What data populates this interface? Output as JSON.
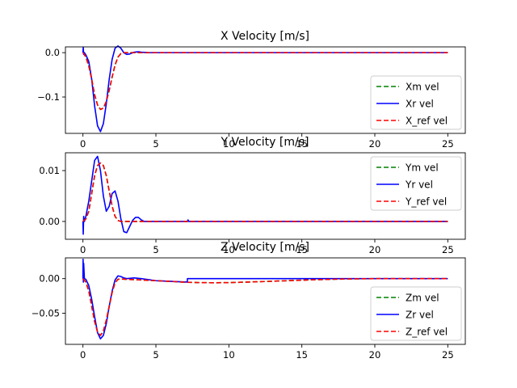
{
  "figure": {
    "background": "#ffffff"
  },
  "chart_data": [
    {
      "type": "line",
      "title": "X Velocity [m/s]",
      "xlabel": "",
      "ylabel": "",
      "xlim": [
        -1.2,
        26.2
      ],
      "ylim": [
        -0.182,
        0.013
      ],
      "xticks": [
        0,
        5,
        10,
        15,
        20,
        25
      ],
      "xtick_labels": [
        "0",
        "5",
        "10",
        "15",
        "20",
        "25"
      ],
      "yticks": [
        0.0,
        -0.1
      ],
      "ytick_labels": [
        "0.0",
        "−0.1"
      ],
      "grid": false,
      "legend_position": "lower-right",
      "series": [
        {
          "name": "Xm vel",
          "color": "#008000",
          "style": "dashed",
          "x": [
            0,
            0.05,
            0.1,
            0.2,
            0.4,
            0.6,
            0.8,
            1.0,
            1.2,
            1.4,
            1.6,
            1.8,
            2.0,
            2.2,
            2.4,
            2.6,
            2.8,
            3.0,
            3.5,
            4.0,
            4.5,
            5,
            10,
            15,
            20,
            25
          ],
          "y": [
            0.0,
            0.0,
            -0.005,
            -0.01,
            -0.03,
            -0.06,
            -0.095,
            -0.118,
            -0.128,
            -0.125,
            -0.11,
            -0.085,
            -0.055,
            -0.028,
            -0.01,
            -0.002,
            0.0,
            0.0,
            0.0,
            0.0,
            0.0,
            0.0,
            0.0,
            0.0,
            0.0,
            0.0
          ]
        },
        {
          "name": "Xr vel",
          "color": "#0000ff",
          "style": "solid",
          "x": [
            0,
            0.02,
            0.05,
            0.1,
            0.2,
            0.4,
            0.6,
            0.8,
            1.0,
            1.2,
            1.4,
            1.6,
            1.8,
            2.0,
            2.2,
            2.4,
            2.6,
            2.8,
            3.0,
            3.2,
            3.5,
            3.8,
            4.0,
            4.5,
            5,
            10,
            15,
            20,
            25
          ],
          "y": [
            0.0,
            0.012,
            -0.004,
            0.0,
            -0.005,
            -0.02,
            -0.06,
            -0.12,
            -0.165,
            -0.178,
            -0.16,
            -0.115,
            -0.06,
            -0.015,
            0.01,
            0.015,
            0.01,
            0.0,
            -0.004,
            -0.003,
            0.001,
            0.002,
            0.001,
            0.0,
            0.0,
            0.0,
            0.0,
            0.0,
            0.0
          ]
        },
        {
          "name": "X_ref vel",
          "color": "#ff0000",
          "style": "dashed",
          "x": [
            0,
            0.1,
            0.2,
            0.4,
            0.6,
            0.8,
            1.0,
            1.2,
            1.4,
            1.6,
            1.8,
            2.0,
            2.2,
            2.4,
            2.6,
            2.8,
            3.0,
            3.5,
            4.0,
            5,
            10,
            15,
            20,
            25
          ],
          "y": [
            0.0,
            -0.004,
            -0.01,
            -0.03,
            -0.06,
            -0.095,
            -0.118,
            -0.128,
            -0.125,
            -0.11,
            -0.085,
            -0.055,
            -0.028,
            -0.01,
            -0.002,
            0.0,
            0.0,
            0.0,
            0.0,
            0.0,
            0.0,
            0.0,
            0.0,
            0.0
          ]
        }
      ]
    },
    {
      "type": "line",
      "title": "Y Velocity [m/s]",
      "xlabel": "",
      "ylabel": "",
      "xlim": [
        -1.2,
        26.2
      ],
      "ylim": [
        -0.0035,
        0.0135
      ],
      "xticks": [
        0,
        5,
        10,
        15,
        20,
        25
      ],
      "xtick_labels": [
        "0",
        "5",
        "10",
        "15",
        "20",
        "25"
      ],
      "yticks": [
        0.01,
        0.0
      ],
      "ytick_labels": [
        "0.01",
        "0.00"
      ],
      "grid": false,
      "legend_position": "upper-right",
      "series": [
        {
          "name": "Ym vel",
          "color": "#008000",
          "style": "dashed",
          "x": [
            0,
            0.2,
            0.4,
            0.6,
            0.8,
            1.0,
            1.2,
            1.4,
            1.6,
            1.8,
            2.0,
            2.2,
            2.4,
            2.6,
            3.0,
            4.0,
            5,
            10,
            15,
            20,
            25
          ],
          "y": [
            0.0,
            0.0005,
            0.002,
            0.0055,
            0.009,
            0.011,
            0.0115,
            0.011,
            0.009,
            0.006,
            0.003,
            0.001,
            0.0002,
            0.0,
            0.0,
            0.0,
            0.0,
            0.0,
            0.0,
            0.0,
            0.0
          ]
        },
        {
          "name": "Yr vel",
          "color": "#0000ff",
          "style": "solid",
          "x": [
            0,
            0.02,
            0.05,
            0.1,
            0.2,
            0.4,
            0.6,
            0.8,
            1.0,
            1.2,
            1.4,
            1.6,
            1.8,
            2.0,
            2.2,
            2.4,
            2.6,
            2.8,
            3.0,
            3.2,
            3.4,
            3.6,
            3.8,
            4.0,
            4.2,
            4.4,
            4.6,
            5,
            7.15,
            7.2,
            7.25,
            10,
            15,
            20,
            25
          ],
          "y": [
            0.0,
            -0.0025,
            0.001,
            0.0,
            0.001,
            0.004,
            0.008,
            0.012,
            0.0128,
            0.01,
            0.005,
            0.002,
            0.003,
            0.0055,
            0.006,
            0.004,
            0.0005,
            -0.002,
            -0.0022,
            -0.001,
            0.0002,
            0.0008,
            0.0008,
            0.0003,
            0.0,
            0.0,
            0.0,
            0.0,
            0.0,
            0.0003,
            0.0,
            0.0,
            0.0,
            0.0,
            0.0
          ]
        },
        {
          "name": "Y_ref vel",
          "color": "#ff0000",
          "style": "dashed",
          "x": [
            0,
            0.2,
            0.4,
            0.6,
            0.8,
            1.0,
            1.2,
            1.4,
            1.6,
            1.8,
            2.0,
            2.2,
            2.4,
            2.6,
            3.0,
            4.0,
            5,
            10,
            15,
            20,
            25
          ],
          "y": [
            0.0,
            0.0005,
            0.002,
            0.0055,
            0.009,
            0.011,
            0.0115,
            0.011,
            0.009,
            0.006,
            0.003,
            0.001,
            0.0002,
            0.0,
            0.0,
            0.0,
            0.0,
            0.0,
            0.0,
            0.0,
            0.0
          ]
        }
      ]
    },
    {
      "type": "line",
      "title": "Z Velocity [m/s]",
      "xlabel": "",
      "ylabel": "",
      "xlim": [
        -1.2,
        26.2
      ],
      "ylim": [
        -0.095,
        0.03
      ],
      "xticks": [
        0,
        5,
        10,
        15,
        20,
        25
      ],
      "xtick_labels": [
        "0",
        "5",
        "10",
        "15",
        "20",
        "25"
      ],
      "yticks": [
        0.0,
        -0.05
      ],
      "ytick_labels": [
        "0.00",
        "−0.05"
      ],
      "grid": false,
      "legend_position": "lower-right",
      "series": [
        {
          "name": "Zm vel",
          "color": "#008000",
          "style": "dashed",
          "x": [
            0,
            0.2,
            0.4,
            0.6,
            0.8,
            1.0,
            1.2,
            1.4,
            1.6,
            1.8,
            2.0,
            2.2,
            2.4,
            2.6,
            3.0,
            3.5,
            4.0,
            5,
            6,
            7,
            8,
            9,
            10,
            12,
            14,
            16,
            18,
            20,
            25
          ],
          "y": [
            0.0,
            -0.005,
            -0.018,
            -0.04,
            -0.062,
            -0.077,
            -0.082,
            -0.076,
            -0.06,
            -0.04,
            -0.02,
            -0.006,
            -0.001,
            -0.0005,
            -0.001,
            -0.0015,
            -0.002,
            -0.003,
            -0.004,
            -0.0052,
            -0.0058,
            -0.006,
            -0.0058,
            -0.0045,
            -0.003,
            -0.0015,
            -0.0005,
            0.0,
            0.0
          ]
        },
        {
          "name": "Zr vel",
          "color": "#0000ff",
          "style": "solid",
          "x": [
            0,
            0.01,
            0.03,
            0.05,
            0.1,
            0.2,
            0.4,
            0.6,
            0.8,
            1.0,
            1.2,
            1.4,
            1.6,
            1.8,
            2.0,
            2.2,
            2.4,
            2.6,
            2.8,
            3.0,
            3.5,
            4.0,
            5,
            6,
            7.15,
            7.16,
            7.2,
            10,
            15,
            20,
            25
          ],
          "y": [
            0.0,
            0.028,
            -0.005,
            0.022,
            0.0,
            -0.001,
            -0.01,
            -0.03,
            -0.055,
            -0.078,
            -0.087,
            -0.082,
            -0.065,
            -0.04,
            -0.018,
            -0.002,
            0.004,
            0.003,
            0.001,
            0.0,
            0.001,
            0.0,
            -0.003,
            -0.004,
            -0.005,
            0.0,
            0.0,
            0.0,
            0.0,
            0.0,
            0.0
          ]
        },
        {
          "name": "Z_ref vel",
          "color": "#ff0000",
          "style": "dashed",
          "x": [
            0,
            0.2,
            0.4,
            0.6,
            0.8,
            1.0,
            1.2,
            1.4,
            1.6,
            1.8,
            2.0,
            2.2,
            2.4,
            2.6,
            3.0,
            3.5,
            4.0,
            5,
            6,
            7,
            8,
            9,
            10,
            12,
            14,
            16,
            18,
            20,
            25
          ],
          "y": [
            0.0,
            -0.005,
            -0.018,
            -0.04,
            -0.062,
            -0.077,
            -0.082,
            -0.076,
            -0.06,
            -0.04,
            -0.02,
            -0.006,
            -0.001,
            -0.0005,
            -0.001,
            -0.0015,
            -0.002,
            -0.003,
            -0.004,
            -0.0052,
            -0.0058,
            -0.006,
            -0.0058,
            -0.0045,
            -0.003,
            -0.0015,
            -0.0005,
            0.0,
            0.0
          ]
        }
      ]
    }
  ]
}
